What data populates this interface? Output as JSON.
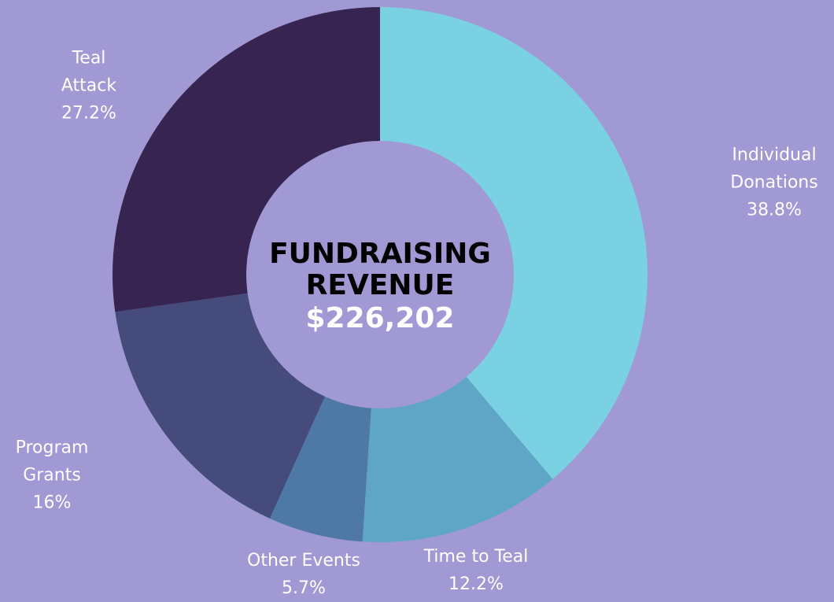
{
  "chart_data": {
    "type": "donut",
    "title": "FUNDRAISING REVENUE",
    "subtitle": "$226,202",
    "categories": [
      "Individual Donations",
      "Time to Teal",
      "Other Events",
      "Program Grants",
      "Teal Attack"
    ],
    "values": [
      38.8,
      12.2,
      5.7,
      16,
      27.2
    ],
    "value_labels": [
      "38.8%",
      "12.2%",
      "5.7%",
      "16%",
      "27.2%"
    ],
    "colors": [
      "#7ad1e1",
      "#5fa5c6",
      "#4e78a5",
      "#454b7b",
      "#372450"
    ]
  }
}
